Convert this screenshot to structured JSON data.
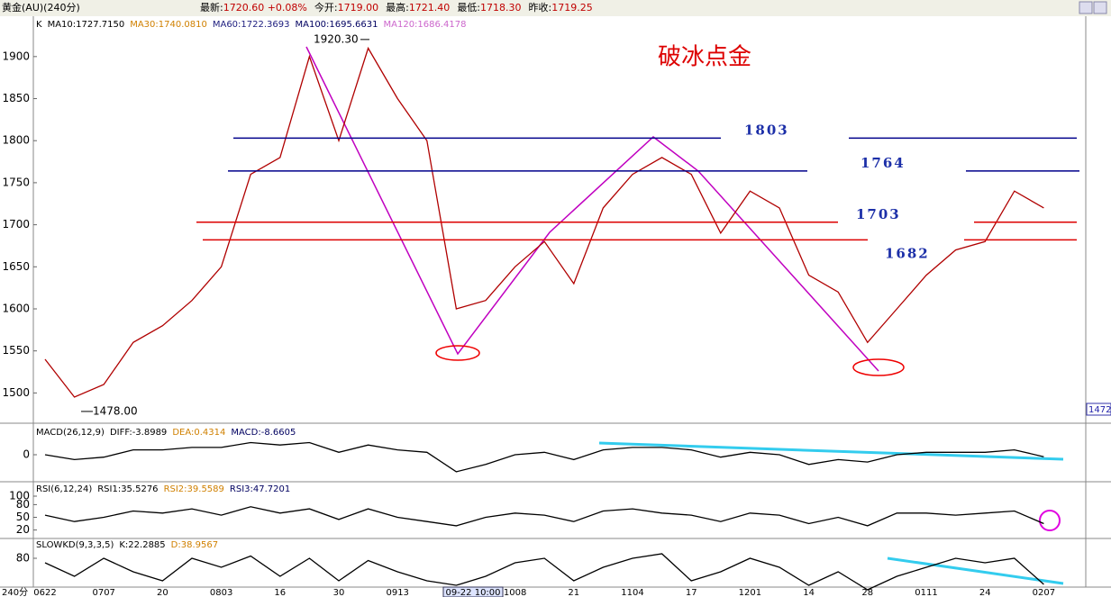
{
  "header": {
    "symbol": "黄金(AU)(240分)",
    "quote": [
      {
        "label": "最新:",
        "value": "1720.60 +0.08%"
      },
      {
        "label": "今开:",
        "value": "1719.00"
      },
      {
        "label": "最高:",
        "value": "1721.40"
      },
      {
        "label": "最低:",
        "value": "1718.30"
      },
      {
        "label": "昨收:",
        "value": "1719.25"
      }
    ]
  },
  "chart_data": [
    {
      "type": "line",
      "title": "破冰点金",
      "legend": [
        {
          "text": "K",
          "color": "#000000"
        },
        {
          "text": "MA10:1727.7150",
          "color": "#000000"
        },
        {
          "text": "MA30:1740.0810",
          "color": "#d08000"
        },
        {
          "text": "MA60:1722.3693",
          "color": "#202080"
        },
        {
          "text": "MA100:1695.6631",
          "color": "#000060"
        },
        {
          "text": "MA120:1686.4178",
          "color": "#cc66cc"
        }
      ],
      "categories": [
        "0622",
        null,
        "0707",
        null,
        "20",
        null,
        "0803",
        null,
        "16",
        null,
        "30",
        null,
        "0913",
        null,
        null,
        null,
        "1008",
        null,
        "21",
        null,
        "1104",
        null,
        "17",
        null,
        "1201",
        null,
        "14",
        null,
        "28",
        null,
        "0111",
        null,
        "24",
        null,
        "0207"
      ],
      "series": [
        {
          "name": "K",
          "color": "#b00000",
          "values": [
            1540,
            1495,
            1510,
            1560,
            1580,
            1610,
            1650,
            1760,
            1780,
            1900,
            1800,
            1910,
            1850,
            1800,
            1600,
            1610,
            1650,
            1680,
            1630,
            1720,
            1760,
            1780,
            1760,
            1690,
            1740,
            1720,
            1640,
            1620,
            1560,
            1600,
            1640,
            1670,
            1680,
            1740,
            1720
          ]
        }
      ],
      "ylim": [
        1464,
        1948
      ],
      "yticks": [
        1500,
        1550,
        1600,
        1650,
        1700,
        1750,
        1800,
        1850,
        1900
      ],
      "levels": [
        {
          "value": 1803,
          "color": "#00008b"
        },
        {
          "value": 1764,
          "color": "#00008b"
        },
        {
          "value": 1703,
          "color": "#dd0000"
        },
        {
          "value": 1682,
          "color": "#dd0000"
        }
      ],
      "annotations": [
        {
          "value": 1920.3,
          "label": "1920.30"
        },
        {
          "value": 1478,
          "label": "1478.00"
        }
      ],
      "crosshair_label": "09-22 10:00",
      "corner_label": "240分",
      "axis_badge": 1472
    },
    {
      "type": "line",
      "legend": [
        {
          "text": "MACD(26,12,9)",
          "color": "#000000"
        },
        {
          "text": "DIFF:-3.8989",
          "color": "#000000"
        },
        {
          "text": "DEA:0.4314",
          "color": "#d08000"
        },
        {
          "text": "MACD:-8.6605",
          "color": "#000060"
        }
      ],
      "series": [
        {
          "name": "DIFF",
          "color": "#000000",
          "values": [
            0,
            -10,
            -5,
            10,
            10,
            15,
            15,
            25,
            20,
            25,
            5,
            20,
            10,
            5,
            -35,
            -20,
            0,
            5,
            -10,
            10,
            15,
            15,
            10,
            -5,
            5,
            0,
            -20,
            -10,
            -15,
            0,
            5,
            5,
            5,
            10,
            -4
          ]
        }
      ],
      "ylim": [
        -50,
        50
      ],
      "yticks": [
        0
      ]
    },
    {
      "type": "line",
      "legend": [
        {
          "text": "RSI(6,12,24)",
          "color": "#000000"
        },
        {
          "text": "RSI1:35.5276",
          "color": "#000000"
        },
        {
          "text": "RSI2:39.5589",
          "color": "#d08000"
        },
        {
          "text": "RSI3:47.7201",
          "color": "#000060"
        }
      ],
      "series": [
        {
          "name": "RSI1",
          "color": "#000000",
          "values": [
            55,
            40,
            50,
            65,
            60,
            70,
            55,
            75,
            60,
            70,
            45,
            70,
            50,
            40,
            30,
            50,
            60,
            55,
            40,
            65,
            70,
            60,
            55,
            40,
            60,
            55,
            35,
            50,
            30,
            60,
            60,
            55,
            60,
            65,
            35
          ]
        }
      ],
      "ylim": [
        0,
        100
      ],
      "yticks": [
        20,
        50,
        80,
        100
      ]
    },
    {
      "type": "line",
      "legend": [
        {
          "text": "SLOWKD(9,3,3,5)",
          "color": "#000000"
        },
        {
          "text": "K:22.2885",
          "color": "#000000"
        },
        {
          "text": "D:38.9567",
          "color": "#d08000"
        }
      ],
      "series": [
        {
          "name": "K",
          "color": "#000000",
          "values": [
            70,
            40,
            80,
            50,
            30,
            80,
            60,
            85,
            40,
            80,
            30,
            75,
            50,
            30,
            20,
            40,
            70,
            80,
            30,
            60,
            80,
            90,
            30,
            50,
            80,
            60,
            20,
            50,
            10,
            40,
            60,
            80,
            70,
            80,
            22
          ]
        }
      ],
      "ylim": [
        0,
        100
      ],
      "yticks": [
        80
      ]
    }
  ]
}
